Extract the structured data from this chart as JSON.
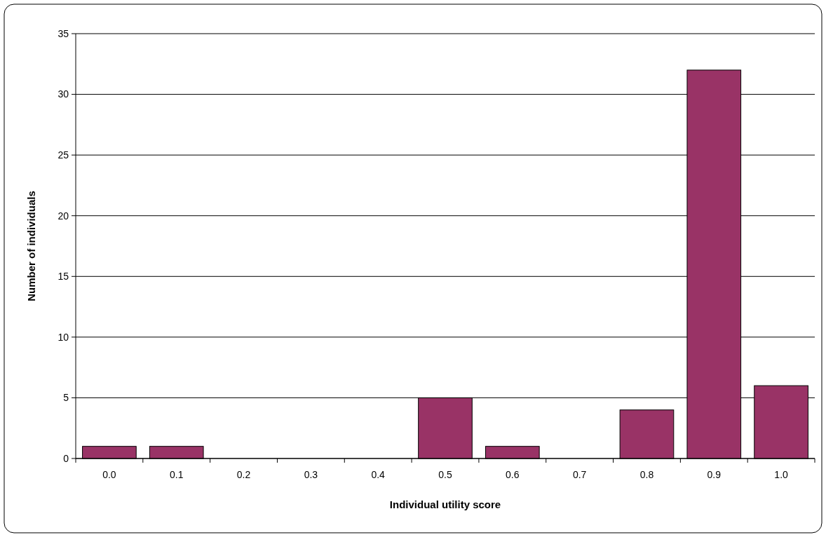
{
  "chart_data": {
    "type": "bar",
    "xlabel": "Individual utility score",
    "ylabel": "Number of individuals",
    "categories": [
      "0.0",
      "0.1",
      "0.2",
      "0.3",
      "0.4",
      "0.5",
      "0.6",
      "0.7",
      "0.8",
      "0.9",
      "1.0"
    ],
    "values": [
      1,
      1,
      0,
      0,
      0,
      5,
      1,
      0,
      4,
      32,
      6
    ],
    "color": "#993366",
    "ylim": [
      0,
      35
    ],
    "yticks": [
      0,
      5,
      10,
      15,
      20,
      25,
      30,
      35
    ],
    "grid": "y"
  }
}
